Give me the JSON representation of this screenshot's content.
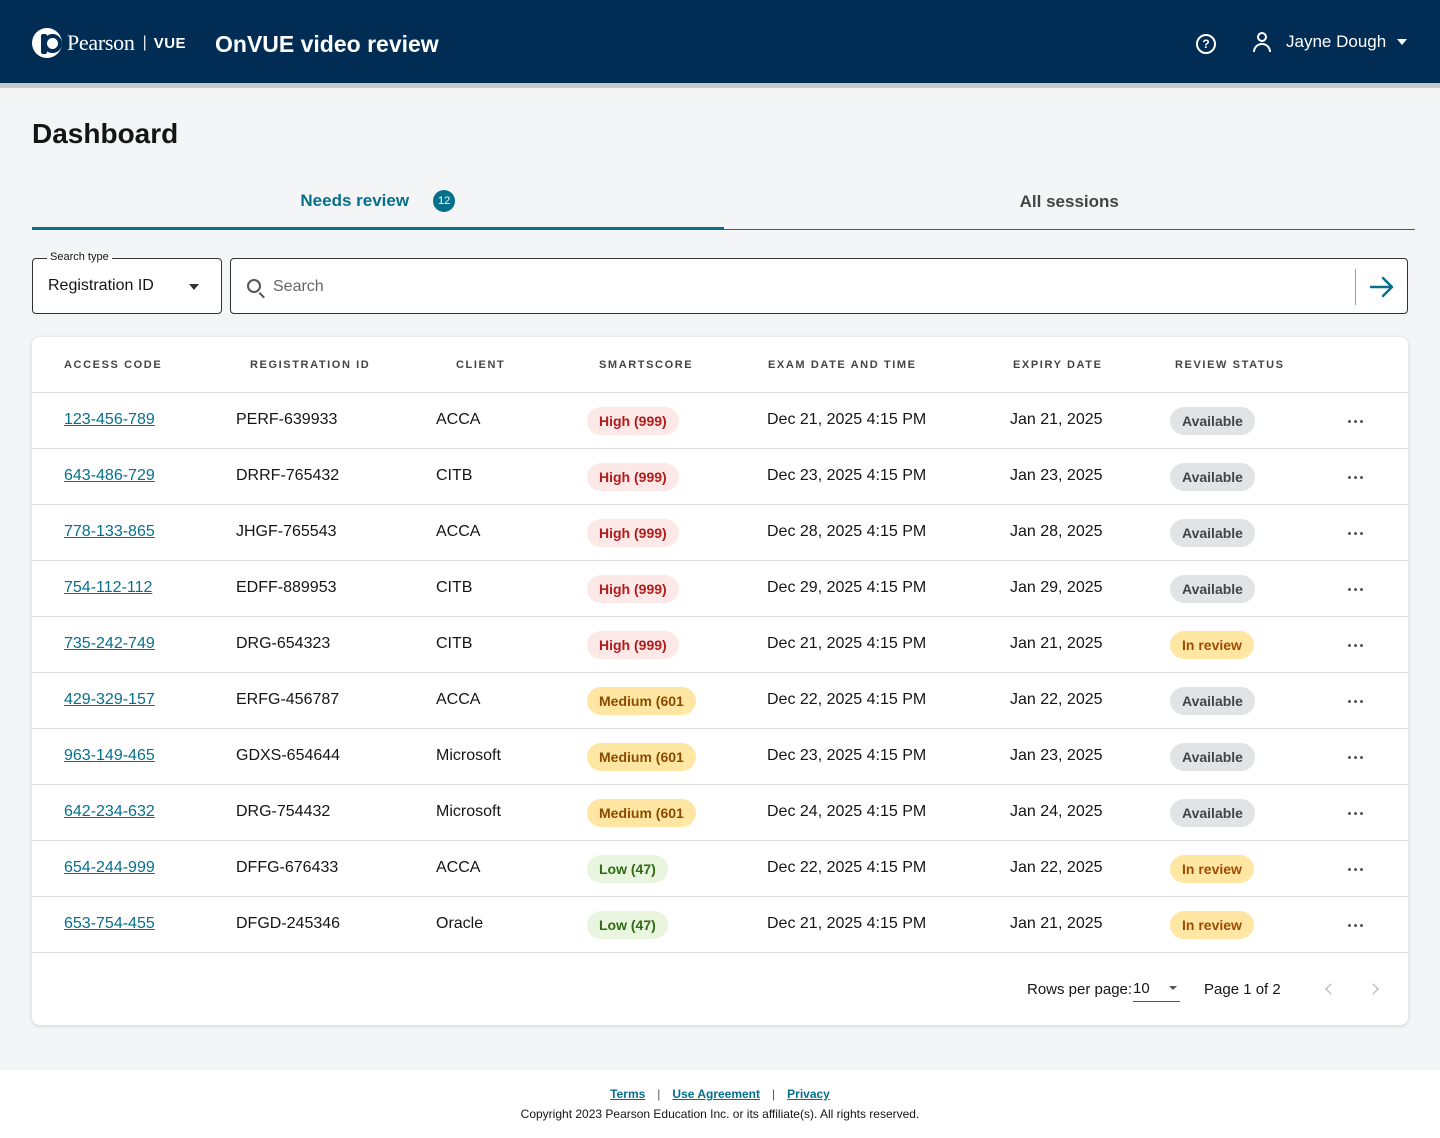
{
  "header": {
    "brand": "Pearson",
    "brand_sub": "VUE",
    "app_title": "OnVUE video review",
    "user_name": "Jayne Dough"
  },
  "page": {
    "title": "Dashboard"
  },
  "tabs": [
    {
      "label": "Needs review",
      "badge": "12",
      "active": true
    },
    {
      "label": "All sessions",
      "active": false
    }
  ],
  "search": {
    "type_label": "Search type",
    "type_value": "Registration ID",
    "placeholder": "Search"
  },
  "table": {
    "columns": [
      "ACCESS CODE",
      "REGISTRATION ID",
      "CLIENT",
      "SMARTSCORE",
      "EXAM DATE AND TIME",
      "EXPIRY DATE",
      "REVIEW STATUS"
    ],
    "rows": [
      {
        "access_code": "123-456-789",
        "registration_id": "PERF-639933",
        "client": "ACCA",
        "smartscore": "High (999)",
        "score_level": "high",
        "exam_date": "Dec 21, 2025 4:15 PM",
        "expiry_date": "Jan 21, 2025",
        "status": "Available",
        "status_type": "available"
      },
      {
        "access_code": "643-486-729",
        "registration_id": "DRRF-765432",
        "client": "CITB",
        "smartscore": "High (999)",
        "score_level": "high",
        "exam_date": "Dec 23, 2025 4:15 PM",
        "expiry_date": "Jan 23, 2025",
        "status": "Available",
        "status_type": "available"
      },
      {
        "access_code": "778-133-865",
        "registration_id": "JHGF-765543",
        "client": "ACCA",
        "smartscore": "High (999)",
        "score_level": "high",
        "exam_date": "Dec 28, 2025 4:15 PM",
        "expiry_date": "Jan 28, 2025",
        "status": "Available",
        "status_type": "available"
      },
      {
        "access_code": "754-112-112",
        "registration_id": "EDFF-889953",
        "client": "CITB",
        "smartscore": "High (999)",
        "score_level": "high",
        "exam_date": "Dec 29, 2025 4:15 PM",
        "expiry_date": "Jan 29, 2025",
        "status": "Available",
        "status_type": "available"
      },
      {
        "access_code": "735-242-749",
        "registration_id": "DRG-654323",
        "client": "CITB",
        "smartscore": "High (999)",
        "score_level": "high",
        "exam_date": "Dec 21, 2025 4:15 PM",
        "expiry_date": "Jan 21, 2025",
        "status": "In review",
        "status_type": "inreview"
      },
      {
        "access_code": "429-329-157",
        "registration_id": "ERFG-456787",
        "client": "ACCA",
        "smartscore": "Medium (601",
        "score_level": "medium",
        "exam_date": "Dec 22, 2025 4:15 PM",
        "expiry_date": "Jan 22, 2025",
        "status": "Available",
        "status_type": "available"
      },
      {
        "access_code": "963-149-465",
        "registration_id": "GDXS-654644",
        "client": "Microsoft",
        "smartscore": "Medium (601",
        "score_level": "medium",
        "exam_date": "Dec 23, 2025 4:15 PM",
        "expiry_date": "Jan 23, 2025",
        "status": "Available",
        "status_type": "available"
      },
      {
        "access_code": "642-234-632",
        "registration_id": "DRG-754432",
        "client": "Microsoft",
        "smartscore": "Medium (601",
        "score_level": "medium",
        "exam_date": "Dec 24, 2025 4:15 PM",
        "expiry_date": "Jan 24, 2025",
        "status": "Available",
        "status_type": "available"
      },
      {
        "access_code": "654-244-999",
        "registration_id": "DFFG-676433",
        "client": "ACCA",
        "smartscore": "Low (47)",
        "score_level": "low",
        "exam_date": "Dec 22, 2025 4:15 PM",
        "expiry_date": "Jan 22, 2025",
        "status": "In review",
        "status_type": "inreview"
      },
      {
        "access_code": "653-754-455",
        "registration_id": "DFGD-245346",
        "client": "Oracle",
        "smartscore": "Low (47)",
        "score_level": "low",
        "exam_date": "Dec 21, 2025 4:15 PM",
        "expiry_date": "Jan 21, 2025",
        "status": "In review",
        "status_type": "inreview"
      }
    ]
  },
  "pagination": {
    "rows_per_page_label": "Rows per page:",
    "rows_per_page": "10",
    "page_info": "Page 1 of 2"
  },
  "footer": {
    "links": [
      "Terms",
      "Use Agreement",
      "Privacy"
    ],
    "copyright": "Copyright 2023 Pearson Education Inc. or its affiliate(s). All rights reserved."
  },
  "colors": {
    "header_bg": "#012d55",
    "accent": "#05708c",
    "high": "#b11b1b",
    "medium": "#8a4b00",
    "low": "#2e6b12"
  },
  "icons": [
    "pearson-logo-icon",
    "help-icon",
    "user-icon",
    "chevron-down-icon",
    "search-icon",
    "arrow-right-icon",
    "more-icon",
    "chevron-left-icon",
    "chevron-right-icon"
  ]
}
